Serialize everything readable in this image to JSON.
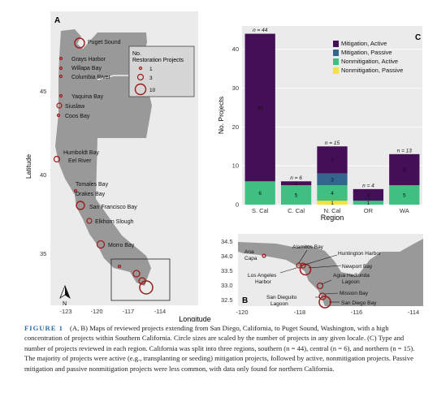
{
  "panel_a": {
    "letter": "A",
    "ylabel": "Latitude",
    "xlabel": "Longitude",
    "y_ticks": [
      "45",
      "40",
      "35"
    ],
    "x_ticks": [
      "-123",
      "-120",
      "-117",
      "-114"
    ],
    "legend": {
      "title_line1": "No.",
      "title_line2": "Restoration Projects",
      "entries": [
        "1",
        "3",
        "10"
      ]
    },
    "sites": [
      "Puget Sound",
      "Grays Harbor",
      "Willapa Bay",
      "Columbia River",
      "Yaquina Bay",
      "Siuslaw",
      "Coos Bay",
      "Humboldt Bay",
      "Eel River",
      "Tomales Bay",
      "Drakes Bay",
      "San Francisco Bay",
      "Elkhorn Slough",
      "Morro Bay"
    ],
    "north_label": "N"
  },
  "panel_b": {
    "letter": "B",
    "y_ticks": [
      "34.5",
      "34.0",
      "33.5",
      "33.0",
      "32.5"
    ],
    "x_ticks": [
      "-120",
      "-118",
      "-116",
      "-114"
    ],
    "sites": [
      "Ana\nCapa",
      "Alamitos Bay",
      "Huntington Harbor",
      "Newport Bay",
      "Los Angeles\nHarbor",
      "Agua Hedionda\nLagoon",
      "Mission Bay",
      "San Dieguito\nLagoon",
      "San Diego Bay"
    ]
  },
  "chart_data": {
    "type": "bar",
    "panel_letter": "C",
    "xlabel": "Region",
    "ylabel": "No. Projects",
    "ylim": [
      0,
      46
    ],
    "y_ticks": [
      0,
      10,
      20,
      30,
      40
    ],
    "categories": [
      "S. Cal",
      "C. Cal",
      "N. Cal",
      "OR",
      "WA"
    ],
    "totals_labels": [
      "n = 44",
      "n = 6",
      "n = 15",
      "n = 4",
      "n = 13"
    ],
    "series": [
      {
        "name": "Nonmitigation, Passive",
        "color": "#f2e23a",
        "values": [
          0,
          0,
          1,
          0,
          0
        ]
      },
      {
        "name": "Nonmitigation, Active",
        "color": "#3fbf82",
        "values": [
          6,
          5,
          4,
          1,
          5
        ]
      },
      {
        "name": "Mitigation, Passive",
        "color": "#33668e",
        "values": [
          0,
          0,
          3,
          0,
          0
        ]
      },
      {
        "name": "Mitigation, Active",
        "color": "#440f57",
        "values": [
          38,
          1,
          7,
          3,
          8
        ]
      }
    ],
    "legend_order": [
      "Mitigation, Active",
      "Mitigation, Passive",
      "Nonmitigation, Active",
      "Nonmitigation, Passive"
    ],
    "legend_position": "top-right"
  },
  "caption": {
    "label": "FIGURE 1",
    "text": "(A, B) Maps of reviewed projects extending from San Diego, California, to Puget Sound, Washington, with a high concentration of projects within Southern California. Circle sizes are scaled by the number of projects in any given locale. (C) Type and number of projects reviewed in each region. California was split into three regions, southern (n = 44), central (n = 6), and northern (n = 15). The majority of projects were active (e.g., transplanting or seeding) mitigation projects, followed by active, nonmitigation projects. Passive mitigation and passive nonmitigation projects were less common, with data only found for northern California."
  }
}
